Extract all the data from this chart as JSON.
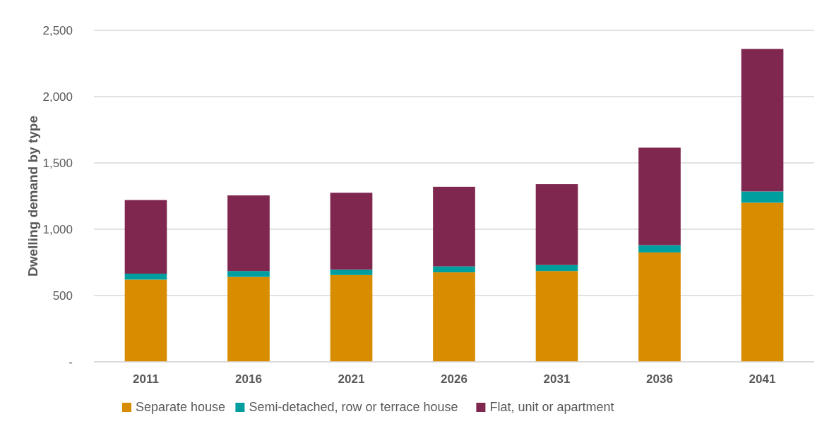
{
  "chart_data": {
    "type": "bar",
    "stacked": true,
    "ylabel": "Dwelling demand by type",
    "categories": [
      "2011",
      "2016",
      "2021",
      "2026",
      "2031",
      "2036",
      "2041"
    ],
    "series": [
      {
        "name": "Separate house",
        "color": "#d88c00",
        "values": [
          620,
          640,
          655,
          675,
          685,
          825,
          1200
        ]
      },
      {
        "name": "Semi-detached, row or terrace house",
        "color": "#009e9e",
        "values": [
          45,
          45,
          40,
          45,
          45,
          55,
          85
        ]
      },
      {
        "name": "Flat, unit or apartment",
        "color": "#7f274f",
        "values": [
          555,
          570,
          580,
          600,
          610,
          735,
          1075
        ]
      }
    ],
    "ylim": [
      0,
      2500
    ],
    "yticks": [
      {
        "value": 0,
        "label": "-"
      },
      {
        "value": 500,
        "label": "500"
      },
      {
        "value": 1000,
        "label": "1,000"
      },
      {
        "value": 1500,
        "label": "1,500"
      },
      {
        "value": 2000,
        "label": "2,000"
      },
      {
        "value": 2500,
        "label": "2,500"
      }
    ],
    "grid": "y",
    "legend": "bottom"
  }
}
